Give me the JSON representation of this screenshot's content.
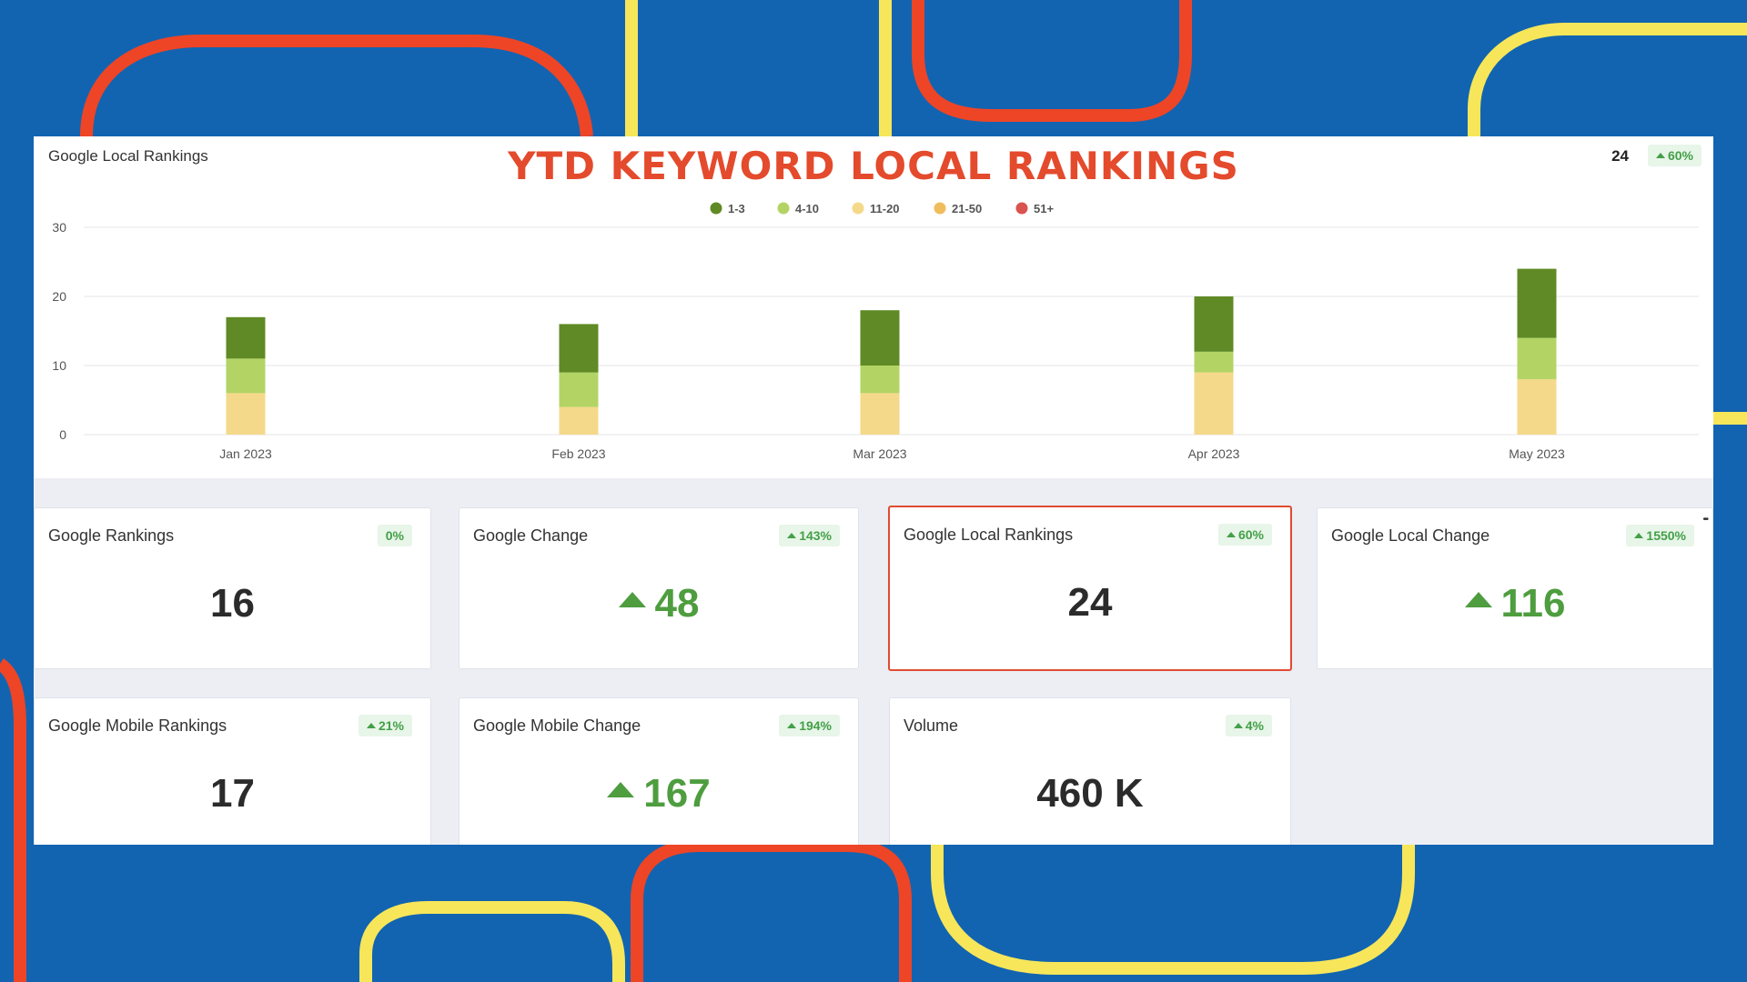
{
  "banner": {
    "title": "YTD KEYWORD LOCAL RANKINGS"
  },
  "chart_panel": {
    "label": "Google Local Rankings",
    "current_value": "24",
    "change_badge": "60%"
  },
  "chart_data": {
    "type": "bar",
    "stacked": true,
    "categories": [
      "Jan 2023",
      "Feb 2023",
      "Mar 2023",
      "Apr 2023",
      "May 2023"
    ],
    "series": [
      {
        "name": "1-3",
        "color": "#5f8a25",
        "values": [
          6,
          7,
          8,
          8,
          10
        ]
      },
      {
        "name": "4-10",
        "color": "#b3d465",
        "values": [
          5,
          5,
          4,
          3,
          6
        ]
      },
      {
        "name": "11-20",
        "color": "#f5d98a",
        "values": [
          6,
          4,
          6,
          9,
          8
        ]
      },
      {
        "name": "21-50",
        "color": "#f0bd5c",
        "values": [
          0,
          0,
          0,
          0,
          0
        ]
      },
      {
        "name": "51+",
        "color": "#d9534f",
        "values": [
          0,
          0,
          0,
          0,
          0
        ]
      }
    ],
    "ylim": [
      0,
      30
    ],
    "yticks": [
      "0",
      "10",
      "20",
      "30"
    ],
    "grid": true,
    "legend": "top-center"
  },
  "cards": [
    {
      "title": "Google Rankings",
      "value": "16",
      "badge": "0%",
      "badge_up": false,
      "value_up": false,
      "selected": false
    },
    {
      "title": "Google Change",
      "value": "48",
      "badge": "143%",
      "badge_up": true,
      "value_up": true,
      "selected": false
    },
    {
      "title": "Google Local Rankings",
      "value": "24",
      "badge": "60%",
      "badge_up": true,
      "value_up": false,
      "selected": true
    },
    {
      "title": "Google Local Change",
      "value": "116",
      "badge": "1550%",
      "badge_up": true,
      "value_up": true,
      "selected": false
    },
    {
      "title": "Google Mobile Rankings",
      "value": "17",
      "badge": "21%",
      "badge_up": true,
      "value_up": false,
      "selected": false
    },
    {
      "title": "Google Mobile Change",
      "value": "167",
      "badge": "194%",
      "badge_up": true,
      "value_up": true,
      "selected": false
    },
    {
      "title": "Volume",
      "value": "460 K",
      "badge": "4%",
      "badge_up": true,
      "value_up": false,
      "selected": false
    }
  ],
  "colors": {
    "background": "#1264b1",
    "accent_red": "#e44a2c",
    "accent_yellow": "#f7e65a",
    "positive": "#4e9d3f"
  },
  "icons": {
    "more": "more-horizontal-icon",
    "up": "triangle-up-icon"
  }
}
